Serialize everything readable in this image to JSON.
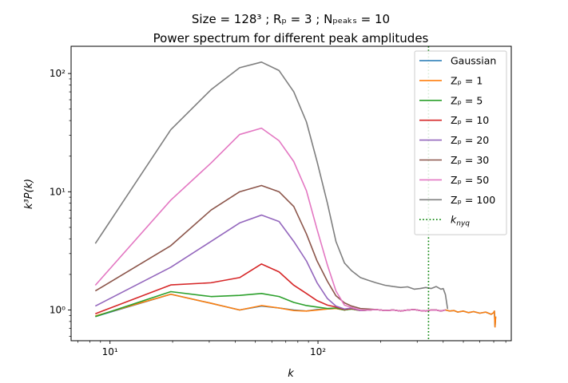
{
  "chart_data": {
    "type": "line",
    "title_line1": "Size  = 128³ ; Rₚ = 3 ; Nₚₑₐₖₛ = 10",
    "title_line2": "Power spectrum for different peak amplitudes",
    "xlabel": "k",
    "ylabel": "k³P(k)",
    "xscale": "log",
    "yscale": "log",
    "xlim": [
      6.5,
      850
    ],
    "ylim": [
      0.55,
      170
    ],
    "x_ticks": [
      {
        "value": 10,
        "label": "10¹"
      },
      {
        "value": 100,
        "label": "10²"
      }
    ],
    "y_ticks": [
      {
        "value": 1,
        "label": "10⁰"
      },
      {
        "value": 10,
        "label": "10¹"
      },
      {
        "value": 100,
        "label": "10²"
      }
    ],
    "grid": false,
    "legend_position": "upper right",
    "series": [
      {
        "name": "Gaussian",
        "color": "#1f77b4",
        "style": "solid",
        "x": [
          8.5,
          19.6,
          30.6,
          42,
          53.5,
          65,
          76.5,
          88,
          99,
          111,
          122,
          134,
          145,
          160,
          175,
          190,
          210,
          230,
          250,
          270,
          290,
          310,
          330,
          350,
          370,
          390,
          410,
          430,
          450,
          470,
          500,
          530,
          560,
          600,
          640,
          680,
          700,
          705,
          710,
          715
        ],
        "y": [
          0.88,
          1.36,
          1.14,
          1.0,
          1.08,
          1.04,
          1.0,
          0.98,
          1.01,
          1.02,
          1.03,
          1.0,
          1.02,
          0.99,
          1.0,
          1.01,
          0.99,
          1.0,
          0.98,
          1.0,
          1.01,
          0.99,
          0.98,
          1.0,
          1.0,
          0.98,
          1.0,
          0.98,
          0.99,
          0.96,
          0.98,
          0.95,
          0.97,
          0.94,
          0.96,
          0.92,
          0.95,
          0.98,
          0.72,
          0.88
        ]
      },
      {
        "name": "Zₚ = 1",
        "color": "#ff7f0e",
        "style": "solid",
        "x": [
          8.5,
          19.6,
          30.6,
          42,
          53.5,
          65,
          76.5,
          88,
          99,
          111,
          122,
          134,
          145,
          160,
          175,
          190,
          210,
          230,
          250,
          270,
          290,
          310,
          330,
          350,
          370,
          390,
          410,
          430,
          450,
          470,
          500,
          530,
          560,
          600,
          640,
          680,
          700,
          705,
          710,
          715
        ],
        "y": [
          0.89,
          1.36,
          1.14,
          1.0,
          1.09,
          1.04,
          0.99,
          0.98,
          1.0,
          1.02,
          1.03,
          1.0,
          1.02,
          0.99,
          1.0,
          1.01,
          0.99,
          1.0,
          0.98,
          1.0,
          1.01,
          0.99,
          0.98,
          1.0,
          1.0,
          0.98,
          1.0,
          0.98,
          0.99,
          0.96,
          0.98,
          0.95,
          0.97,
          0.94,
          0.96,
          0.92,
          0.95,
          0.98,
          0.72,
          0.88
        ]
      },
      {
        "name": "Zₚ = 5",
        "color": "#2ca02c",
        "style": "solid",
        "x": [
          8.5,
          19.6,
          30.6,
          42,
          53.5,
          65,
          76.5,
          88,
          99,
          111,
          122,
          134,
          145,
          160,
          175,
          190,
          210,
          230,
          250,
          270,
          290,
          310,
          330,
          350,
          370,
          390,
          410
        ],
        "y": [
          0.88,
          1.43,
          1.3,
          1.33,
          1.38,
          1.3,
          1.16,
          1.09,
          1.06,
          1.03,
          1.04,
          1.0,
          1.02,
          0.99,
          1.0,
          1.01,
          0.99,
          1.0,
          0.98,
          1.0,
          1.01,
          0.99,
          0.98,
          1.0,
          1.0,
          0.98,
          1.0
        ]
      },
      {
        "name": "Zₚ = 10",
        "color": "#d62728",
        "style": "solid",
        "x": [
          8.5,
          19.6,
          30.6,
          42,
          53.5,
          65,
          76.5,
          88,
          99,
          111,
          122,
          134,
          145,
          160,
          175,
          190,
          210,
          230,
          250,
          270,
          290,
          310,
          330,
          350,
          370,
          390,
          410
        ],
        "y": [
          0.93,
          1.63,
          1.7,
          1.88,
          2.45,
          2.1,
          1.62,
          1.38,
          1.2,
          1.1,
          1.06,
          1.01,
          1.03,
          0.99,
          1.0,
          1.01,
          0.99,
          1.0,
          0.98,
          1.0,
          1.01,
          0.99,
          0.98,
          1.0,
          1.0,
          0.98,
          1.0
        ]
      },
      {
        "name": "Zₚ = 20",
        "color": "#9467bd",
        "style": "solid",
        "x": [
          8.5,
          19.6,
          30.6,
          42,
          53.5,
          65,
          76.5,
          88,
          99,
          111,
          122,
          134,
          145,
          160,
          175,
          190,
          210,
          230,
          250,
          270,
          290,
          310,
          330,
          350,
          370,
          390,
          410
        ],
        "y": [
          1.08,
          2.3,
          3.8,
          5.45,
          6.35,
          5.6,
          3.8,
          2.6,
          1.7,
          1.25,
          1.08,
          1.02,
          1.04,
          0.99,
          1.0,
          1.01,
          0.99,
          1.0,
          0.98,
          1.0,
          1.01,
          0.99,
          0.98,
          1.0,
          1.0,
          0.98,
          1.0
        ]
      },
      {
        "name": "Zₚ = 30",
        "color": "#8c564b",
        "style": "solid",
        "x": [
          8.5,
          19.6,
          30.6,
          42,
          53.5,
          65,
          76.5,
          88,
          99,
          111,
          122,
          134,
          145,
          160,
          175,
          190,
          210,
          230,
          250,
          270,
          290,
          310,
          330,
          350,
          370,
          390,
          410
        ],
        "y": [
          1.45,
          3.5,
          7.0,
          10.0,
          11.3,
          10.0,
          7.5,
          4.4,
          2.6,
          1.75,
          1.32,
          1.15,
          1.08,
          1.03,
          1.02,
          1.01,
          0.99,
          1.0,
          0.98,
          1.0,
          1.01,
          0.99,
          0.98,
          1.0,
          1.0,
          0.98,
          1.0
        ]
      },
      {
        "name": "Zₚ = 50",
        "color": "#e377c2",
        "style": "solid",
        "x": [
          8.5,
          19.6,
          30.6,
          42,
          53.5,
          65,
          76.5,
          88,
          99,
          111,
          122,
          134,
          145,
          160,
          175,
          190,
          210,
          230,
          250,
          270,
          290,
          310,
          330,
          350,
          370,
          390,
          410
        ],
        "y": [
          1.62,
          8.5,
          17.5,
          30.5,
          34.5,
          27.0,
          18.0,
          10.2,
          4.8,
          2.4,
          1.45,
          1.1,
          1.05,
          1.0,
          1.0,
          1.01,
          0.99,
          1.0,
          0.98,
          1.0,
          1.01,
          0.99,
          0.98,
          1.0,
          1.0,
          0.98,
          1.0
        ]
      },
      {
        "name": "Zₚ = 100",
        "color": "#7f7f7f",
        "style": "solid",
        "x": [
          8.5,
          19.6,
          30.6,
          42,
          53.5,
          65,
          76.5,
          88,
          99,
          111,
          122,
          134,
          145,
          160,
          175,
          190,
          210,
          230,
          250,
          270,
          290,
          310,
          330,
          350,
          370,
          390,
          400,
          410,
          420
        ],
        "y": [
          3.65,
          33.5,
          73.0,
          112.0,
          125.0,
          106.0,
          70.0,
          39.0,
          18.0,
          8.0,
          3.8,
          2.5,
          2.15,
          1.88,
          1.78,
          1.7,
          1.62,
          1.58,
          1.55,
          1.57,
          1.5,
          1.52,
          1.55,
          1.52,
          1.58,
          1.5,
          1.52,
          1.35,
          1.02
        ]
      },
      {
        "name": "k_nyq",
        "label_main": "k",
        "label_sub": "nyq",
        "color": "#008000",
        "style": "dotted",
        "x": [
          340
        ],
        "vertical": true
      }
    ]
  }
}
